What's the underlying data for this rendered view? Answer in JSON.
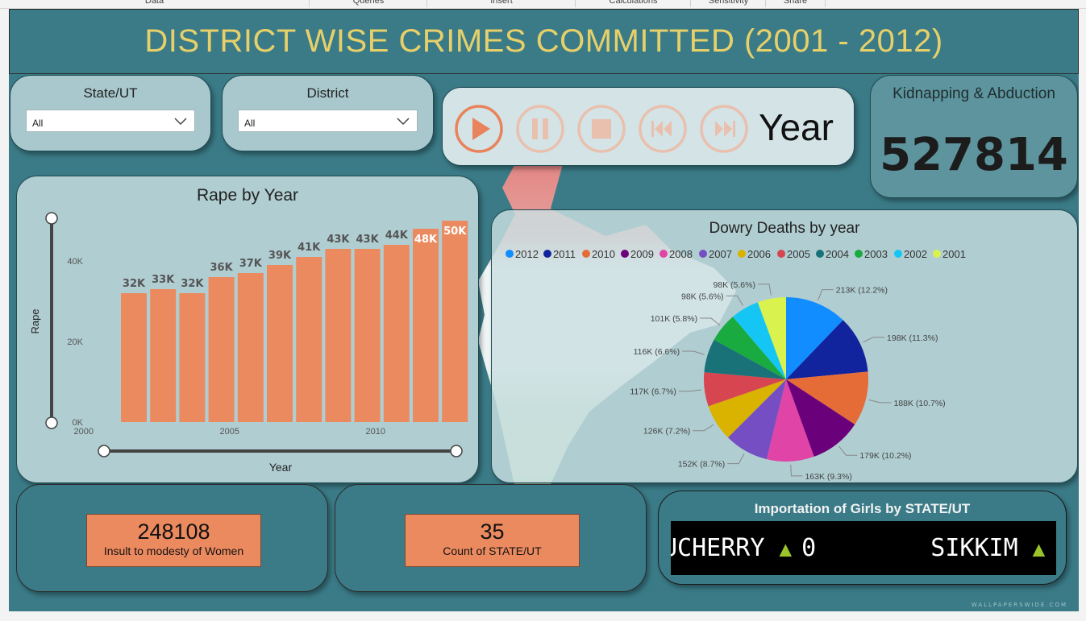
{
  "ribbon": {
    "tabs": [
      "Data",
      "Queries",
      "Insert",
      "Calculations",
      "Sensitivity",
      "Share"
    ]
  },
  "title": "DISTRICT WISE CRIMES COMMITTED (2001 - 2012)",
  "slicers": {
    "state": {
      "label": "State/UT",
      "value": "All"
    },
    "district": {
      "label": "District",
      "value": "All"
    }
  },
  "player": {
    "label": "Year",
    "buttons": [
      "play-icon",
      "pause-icon",
      "stop-icon",
      "skip-back-icon",
      "skip-forward-icon"
    ],
    "accent": "#e9835b"
  },
  "kidnapping": {
    "label": "Kidnapping & Abduction",
    "value": "527814"
  },
  "rape_chart": {
    "bar_color": "#ec8a5f",
    "chart_data": {
      "type": "bar",
      "title": "Rape by Year",
      "xlabel": "Year",
      "ylabel": "Rape",
      "x": [
        2001,
        2002,
        2003,
        2004,
        2005,
        2006,
        2007,
        2008,
        2009,
        2010,
        2011,
        2012
      ],
      "values": [
        32000,
        33000,
        32000,
        36000,
        37000,
        39000,
        41000,
        43000,
        43000,
        44000,
        48000,
        50000
      ],
      "data_labels": [
        "32K",
        "33K",
        "32K",
        "36K",
        "37K",
        "39K",
        "41K",
        "43K",
        "43K",
        "44K",
        "48K",
        "50K"
      ],
      "xticks": [
        "2000",
        "2005",
        "2010"
      ],
      "yticks": [
        "0K",
        "20K",
        "40K"
      ],
      "ylim": [
        0,
        50000
      ],
      "grid": false
    }
  },
  "dowry_chart": {
    "chart_data": {
      "type": "pie",
      "title": "Dowry Deaths by year",
      "legend_position": "top",
      "categories": [
        "2012",
        "2011",
        "2010",
        "2009",
        "2008",
        "2007",
        "2006",
        "2005",
        "2004",
        "2003",
        "2002",
        "2001"
      ],
      "values": [
        213,
        198,
        188,
        179,
        163,
        152,
        126,
        117,
        116,
        101,
        98,
        98
      ],
      "labels": [
        "213K (12.2%)",
        "198K (11.3%)",
        "188K (10.7%)",
        "179K (10.2%)",
        "163K (9.3%)",
        "152K (8.7%)",
        "126K (7.2%)",
        "117K (6.7%)",
        "116K (6.6%)",
        "101K (5.8%)",
        "98K (5.6%)",
        "98K (5.6%)"
      ],
      "colors": [
        "#118dff",
        "#12239e",
        "#e66c37",
        "#6b007b",
        "#e044a7",
        "#744ec2",
        "#d9b300",
        "#d64550",
        "#197278",
        "#1aab40",
        "#15c6f4",
        "#d9f24e"
      ]
    }
  },
  "insult_kpi": {
    "value": "248108",
    "label": "Insult to modesty of Women"
  },
  "count_kpi": {
    "value": "35",
    "label": "Count of STATE/UT"
  },
  "ticker": {
    "title": "Importation of Girls by STATE/UT",
    "items": [
      {
        "state": "UCHERRY",
        "value": "0"
      },
      {
        "state": "SIKKIM",
        "value": ""
      }
    ]
  },
  "watermark": "WALLPAPERSWIDE.COM"
}
